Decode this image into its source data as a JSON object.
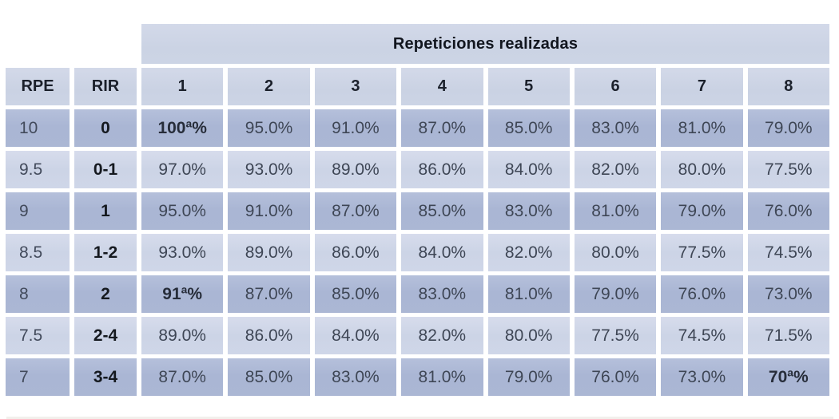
{
  "chart_data": {
    "type": "table",
    "title": "Repeticiones realizadas",
    "col_headers": [
      "RPE",
      "RIR",
      "1",
      "2",
      "3",
      "4",
      "5",
      "6",
      "7",
      "8"
    ],
    "rows": [
      {
        "rpe": "10",
        "rir": "0",
        "values": [
          "100ª%",
          "95.0%",
          "91.0%",
          "87.0%",
          "85.0%",
          "83.0%",
          "81.0%",
          "79.0%"
        ],
        "emphasis": [
          0
        ]
      },
      {
        "rpe": "9.5",
        "rir": "0-1",
        "values": [
          "97.0%",
          "93.0%",
          "89.0%",
          "86.0%",
          "84.0%",
          "82.0%",
          "80.0%",
          "77.5%"
        ],
        "emphasis": []
      },
      {
        "rpe": "9",
        "rir": "1",
        "values": [
          "95.0%",
          "91.0%",
          "87.0%",
          "85.0%",
          "83.0%",
          "81.0%",
          "79.0%",
          "76.0%"
        ],
        "emphasis": []
      },
      {
        "rpe": "8.5",
        "rir": "1-2",
        "values": [
          "93.0%",
          "89.0%",
          "86.0%",
          "84.0%",
          "82.0%",
          "80.0%",
          "77.5%",
          "74.5%"
        ],
        "emphasis": []
      },
      {
        "rpe": "8",
        "rir": "2",
        "values": [
          "91ª%",
          "87.0%",
          "85.0%",
          "83.0%",
          "81.0%",
          "79.0%",
          "76.0%",
          "73.0%"
        ],
        "emphasis": [
          0
        ]
      },
      {
        "rpe": "7.5",
        "rir": "2-4",
        "values": [
          "89.0%",
          "86.0%",
          "84.0%",
          "82.0%",
          "80.0%",
          "77.5%",
          "74.5%",
          "71.5%"
        ],
        "emphasis": []
      },
      {
        "rpe": "7",
        "rir": "3-4",
        "values": [
          "87.0%",
          "85.0%",
          "83.0%",
          "81.0%",
          "79.0%",
          "76.0%",
          "73.0%",
          "70ª%"
        ],
        "emphasis": [
          7
        ]
      }
    ],
    "colors": {
      "header_bg": "#ccd4e5",
      "row_dark_bg": "#abb7d4",
      "row_light_bg": "#cfd6e8",
      "text_dark": "#3e4655"
    },
    "layout": {
      "zebra": "dark starts at first data row",
      "grid": "white 5-6px gaps between cells"
    }
  }
}
